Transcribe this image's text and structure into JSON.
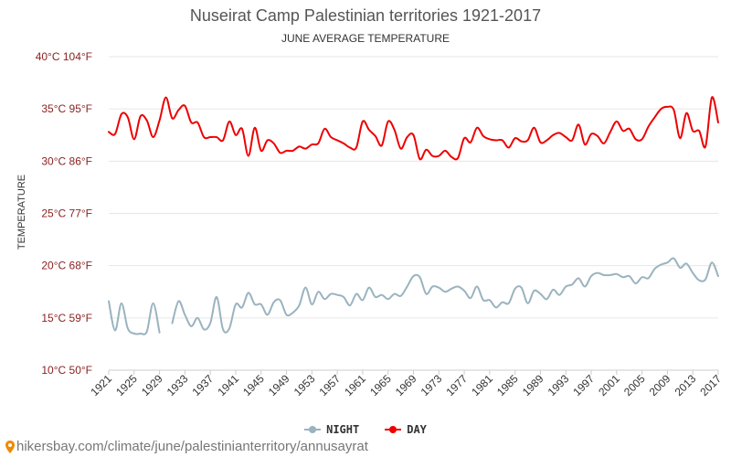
{
  "header": {
    "title": "Nuseirat Camp Palestinian territories 1921-2017",
    "subtitle": "JUNE AVERAGE TEMPERATURE"
  },
  "footer": {
    "url": "hikersbay.com/climate/june/palestinianterritory/annusayrat"
  },
  "colors": {
    "day": "#ee0000",
    "night": "#99b3bf",
    "grid": "#e6e6e6",
    "tick_text": "#333333",
    "ytick_text": "#8b2222"
  },
  "chart_data": {
    "type": "line",
    "title": "Nuseirat Camp Palestinian territories 1921-2017",
    "subtitle": "JUNE AVERAGE TEMPERATURE",
    "ylabel": "TEMPERATURE",
    "xlabel": "",
    "ylim": [
      10,
      40
    ],
    "xlim": [
      1921,
      2017
    ],
    "yticks": [
      {
        "value": 10,
        "label": "10°C 50°F"
      },
      {
        "value": 15,
        "label": "15°C 59°F"
      },
      {
        "value": 20,
        "label": "20°C 68°F"
      },
      {
        "value": 25,
        "label": "25°C 77°F"
      },
      {
        "value": 30,
        "label": "30°C 86°F"
      },
      {
        "value": 35,
        "label": "35°C 95°F"
      },
      {
        "value": 40,
        "label": "40°C 104°F"
      }
    ],
    "xticks": [
      1921,
      1925,
      1929,
      1933,
      1937,
      1941,
      1945,
      1949,
      1953,
      1957,
      1961,
      1965,
      1969,
      1973,
      1977,
      1981,
      1985,
      1989,
      1993,
      1997,
      2001,
      2005,
      2009,
      2013,
      2017
    ],
    "legend_position": "bottom-center",
    "grid": true,
    "series": [
      {
        "name": "NIGHT",
        "color": "#99b3bf",
        "points": [
          [
            1921,
            16.6
          ],
          [
            1922,
            13.8
          ],
          [
            1923,
            16.4
          ],
          [
            1924,
            14.0
          ],
          [
            1925,
            13.5
          ],
          [
            1926,
            13.5
          ],
          [
            1927,
            13.7
          ],
          [
            1928,
            16.4
          ],
          [
            1929,
            13.6
          ],
          [
            1931,
            14.5
          ],
          [
            1932,
            16.6
          ],
          [
            1933,
            15.3
          ],
          [
            1934,
            14.2
          ],
          [
            1935,
            15.0
          ],
          [
            1936,
            13.9
          ],
          [
            1937,
            14.5
          ],
          [
            1938,
            17.0
          ],
          [
            1939,
            13.9
          ],
          [
            1940,
            14.0
          ],
          [
            1941,
            16.3
          ],
          [
            1942,
            16.0
          ],
          [
            1943,
            17.4
          ],
          [
            1944,
            16.3
          ],
          [
            1945,
            16.3
          ],
          [
            1946,
            15.3
          ],
          [
            1947,
            16.5
          ],
          [
            1948,
            16.7
          ],
          [
            1949,
            15.3
          ],
          [
            1950,
            15.5
          ],
          [
            1951,
            16.2
          ],
          [
            1952,
            17.9
          ],
          [
            1953,
            16.3
          ],
          [
            1954,
            17.5
          ],
          [
            1955,
            16.8
          ],
          [
            1956,
            17.3
          ],
          [
            1957,
            17.2
          ],
          [
            1958,
            17.0
          ],
          [
            1959,
            16.2
          ],
          [
            1960,
            17.3
          ],
          [
            1961,
            16.7
          ],
          [
            1962,
            17.9
          ],
          [
            1963,
            17.0
          ],
          [
            1964,
            17.2
          ],
          [
            1965,
            16.8
          ],
          [
            1966,
            17.3
          ],
          [
            1967,
            17.1
          ],
          [
            1968,
            18.0
          ],
          [
            1969,
            19.0
          ],
          [
            1970,
            18.9
          ],
          [
            1971,
            17.3
          ],
          [
            1972,
            18.0
          ],
          [
            1973,
            17.9
          ],
          [
            1974,
            17.5
          ],
          [
            1975,
            17.8
          ],
          [
            1976,
            18.0
          ],
          [
            1977,
            17.6
          ],
          [
            1978,
            16.9
          ],
          [
            1979,
            18.0
          ],
          [
            1980,
            16.7
          ],
          [
            1981,
            16.7
          ],
          [
            1982,
            16.0
          ],
          [
            1983,
            16.5
          ],
          [
            1984,
            16.4
          ],
          [
            1985,
            17.8
          ],
          [
            1986,
            17.9
          ],
          [
            1987,
            16.4
          ],
          [
            1988,
            17.6
          ],
          [
            1989,
            17.3
          ],
          [
            1990,
            16.8
          ],
          [
            1991,
            17.7
          ],
          [
            1992,
            17.2
          ],
          [
            1993,
            18.0
          ],
          [
            1994,
            18.2
          ],
          [
            1995,
            18.8
          ],
          [
            1996,
            18.0
          ],
          [
            1997,
            19.0
          ],
          [
            1998,
            19.3
          ],
          [
            1999,
            19.1
          ],
          [
            2000,
            19.1
          ],
          [
            2001,
            19.2
          ],
          [
            2002,
            18.9
          ],
          [
            2003,
            19.0
          ],
          [
            2004,
            18.3
          ],
          [
            2005,
            18.9
          ],
          [
            2006,
            18.8
          ],
          [
            2007,
            19.7
          ],
          [
            2008,
            20.1
          ],
          [
            2009,
            20.3
          ],
          [
            2010,
            20.7
          ],
          [
            2011,
            19.8
          ],
          [
            2012,
            20.2
          ],
          [
            2013,
            19.3
          ],
          [
            2014,
            18.6
          ],
          [
            2015,
            18.7
          ],
          [
            2016,
            20.3
          ],
          [
            2017,
            19.0
          ]
        ]
      },
      {
        "name": "DAY",
        "color": "#ee0000",
        "points": [
          [
            1921,
            32.8
          ],
          [
            1922,
            32.6
          ],
          [
            1923,
            34.5
          ],
          [
            1924,
            34.2
          ],
          [
            1925,
            32.1
          ],
          [
            1926,
            34.3
          ],
          [
            1927,
            33.9
          ],
          [
            1928,
            32.3
          ],
          [
            1929,
            33.9
          ],
          [
            1930,
            36.1
          ],
          [
            1931,
            34.1
          ],
          [
            1932,
            34.9
          ],
          [
            1933,
            35.3
          ],
          [
            1934,
            33.7
          ],
          [
            1935,
            33.7
          ],
          [
            1936,
            32.3
          ],
          [
            1937,
            32.3
          ],
          [
            1938,
            32.3
          ],
          [
            1939,
            32.0
          ],
          [
            1940,
            33.8
          ],
          [
            1941,
            32.5
          ],
          [
            1942,
            33.1
          ],
          [
            1943,
            30.5
          ],
          [
            1944,
            33.2
          ],
          [
            1945,
            31.0
          ],
          [
            1946,
            32.0
          ],
          [
            1947,
            31.7
          ],
          [
            1948,
            30.8
          ],
          [
            1949,
            31.0
          ],
          [
            1950,
            31.0
          ],
          [
            1951,
            31.4
          ],
          [
            1952,
            31.2
          ],
          [
            1953,
            31.6
          ],
          [
            1954,
            31.7
          ],
          [
            1955,
            33.1
          ],
          [
            1956,
            32.3
          ],
          [
            1957,
            32.0
          ],
          [
            1958,
            31.7
          ],
          [
            1959,
            31.3
          ],
          [
            1960,
            31.3
          ],
          [
            1961,
            33.8
          ],
          [
            1962,
            33.0
          ],
          [
            1963,
            32.4
          ],
          [
            1964,
            31.5
          ],
          [
            1965,
            33.8
          ],
          [
            1966,
            33.0
          ],
          [
            1967,
            31.2
          ],
          [
            1968,
            32.3
          ],
          [
            1969,
            32.5
          ],
          [
            1970,
            30.2
          ],
          [
            1971,
            31.1
          ],
          [
            1972,
            30.5
          ],
          [
            1973,
            30.5
          ],
          [
            1974,
            31.0
          ],
          [
            1975,
            30.4
          ],
          [
            1976,
            30.3
          ],
          [
            1977,
            32.2
          ],
          [
            1978,
            31.8
          ],
          [
            1979,
            33.2
          ],
          [
            1980,
            32.4
          ],
          [
            1981,
            32.1
          ],
          [
            1982,
            32.0
          ],
          [
            1983,
            32.0
          ],
          [
            1984,
            31.3
          ],
          [
            1985,
            32.2
          ],
          [
            1986,
            31.9
          ],
          [
            1987,
            32.0
          ],
          [
            1988,
            33.2
          ],
          [
            1989,
            31.8
          ],
          [
            1990,
            32.0
          ],
          [
            1991,
            32.5
          ],
          [
            1992,
            32.7
          ],
          [
            1993,
            32.3
          ],
          [
            1994,
            32.0
          ],
          [
            1995,
            33.5
          ],
          [
            1996,
            31.6
          ],
          [
            1997,
            32.6
          ],
          [
            1998,
            32.4
          ],
          [
            1999,
            31.7
          ],
          [
            2000,
            32.8
          ],
          [
            2001,
            33.8
          ],
          [
            2002,
            32.9
          ],
          [
            2003,
            33.1
          ],
          [
            2004,
            32.1
          ],
          [
            2005,
            32.1
          ],
          [
            2006,
            33.3
          ],
          [
            2007,
            34.2
          ],
          [
            2008,
            35.0
          ],
          [
            2009,
            35.2
          ],
          [
            2010,
            34.9
          ],
          [
            2011,
            32.2
          ],
          [
            2012,
            34.6
          ],
          [
            2013,
            32.9
          ],
          [
            2014,
            32.9
          ],
          [
            2015,
            31.4
          ],
          [
            2016,
            36.1
          ],
          [
            2017,
            33.7
          ]
        ]
      }
    ]
  }
}
